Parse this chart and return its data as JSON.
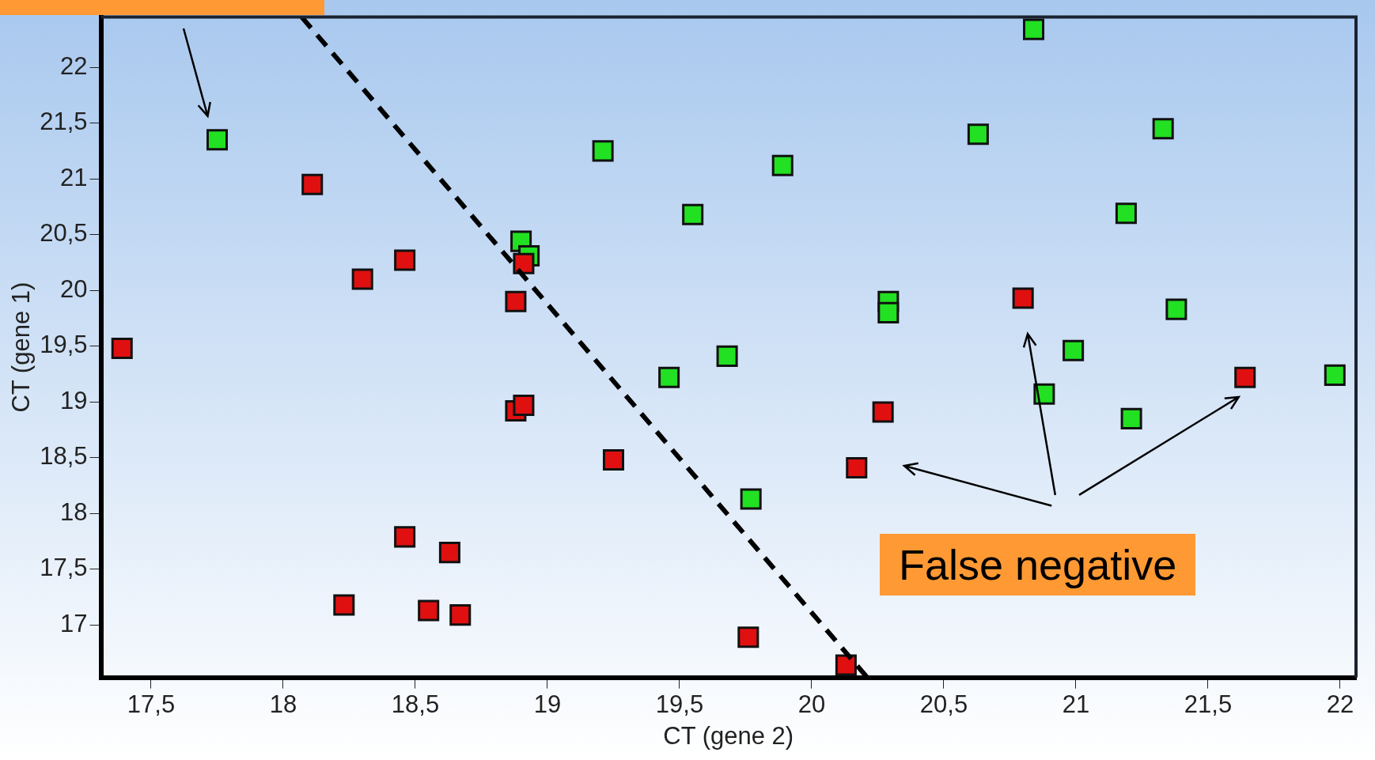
{
  "chart_data": {
    "type": "scatter",
    "xlabel": "CT (gene 2)",
    "ylabel": "CT (gene 1)",
    "xlim": [
      17.31,
      22.06
    ],
    "ylim": [
      16.53,
      22.45
    ],
    "xticks": [
      {
        "value": 17.5,
        "label": "17,5"
      },
      18,
      {
        "value": 18.5,
        "label": "18,5"
      },
      19,
      {
        "value": 19.5,
        "label": "19,5"
      },
      20,
      {
        "value": 20.5,
        "label": "20,5"
      },
      21,
      {
        "value": 21.5,
        "label": "21,5"
      },
      22
    ],
    "yticks": [
      17,
      {
        "value": 17.5,
        "label": "17,5"
      },
      18,
      {
        "value": 18.5,
        "label": "18,5"
      },
      19,
      {
        "value": 19.5,
        "label": "19,5"
      },
      20,
      {
        "value": 20.5,
        "label": "20,5"
      },
      21,
      {
        "value": 21.5,
        "label": "21,5"
      },
      22
    ],
    "grid": false,
    "legend": false,
    "marker": "square",
    "series": [
      {
        "color": "#22e022",
        "x": [
          17.75,
          19.21,
          19.89,
          19.55,
          18.9,
          18.93,
          20.63,
          21.33,
          20.84,
          21.19,
          20.29,
          20.29,
          21.38,
          20.99,
          19.68,
          19.46,
          20.88,
          21.98,
          21.21,
          19.77
        ],
        "values": [
          21.35,
          21.25,
          21.12,
          20.68,
          20.44,
          20.31,
          21.4,
          21.45,
          22.34,
          20.69,
          19.9,
          19.8,
          19.83,
          19.46,
          19.41,
          19.22,
          19.07,
          19.24,
          18.85,
          18.13
        ]
      },
      {
        "color": "#e01010",
        "x": [
          17.39,
          18.11,
          18.3,
          18.46,
          18.91,
          18.88,
          18.88,
          18.91,
          19.25,
          20.8,
          20.27,
          20.17,
          21.64,
          18.46,
          18.63,
          18.23,
          18.55,
          18.67,
          19.76,
          20.13
        ],
        "values": [
          19.48,
          20.95,
          20.1,
          20.27,
          20.24,
          19.9,
          18.92,
          18.97,
          18.48,
          19.93,
          18.91,
          18.41,
          19.22,
          17.79,
          17.65,
          17.18,
          17.13,
          17.09,
          16.89,
          16.64
        ]
      },
      {
        "type": "line",
        "color": "#000000",
        "line_style": "dashed",
        "marker": "none",
        "x": [
          18.07,
          20.21
        ],
        "values": [
          22.45,
          16.53
        ]
      }
    ],
    "annotations": [
      "False negative"
    ]
  }
}
